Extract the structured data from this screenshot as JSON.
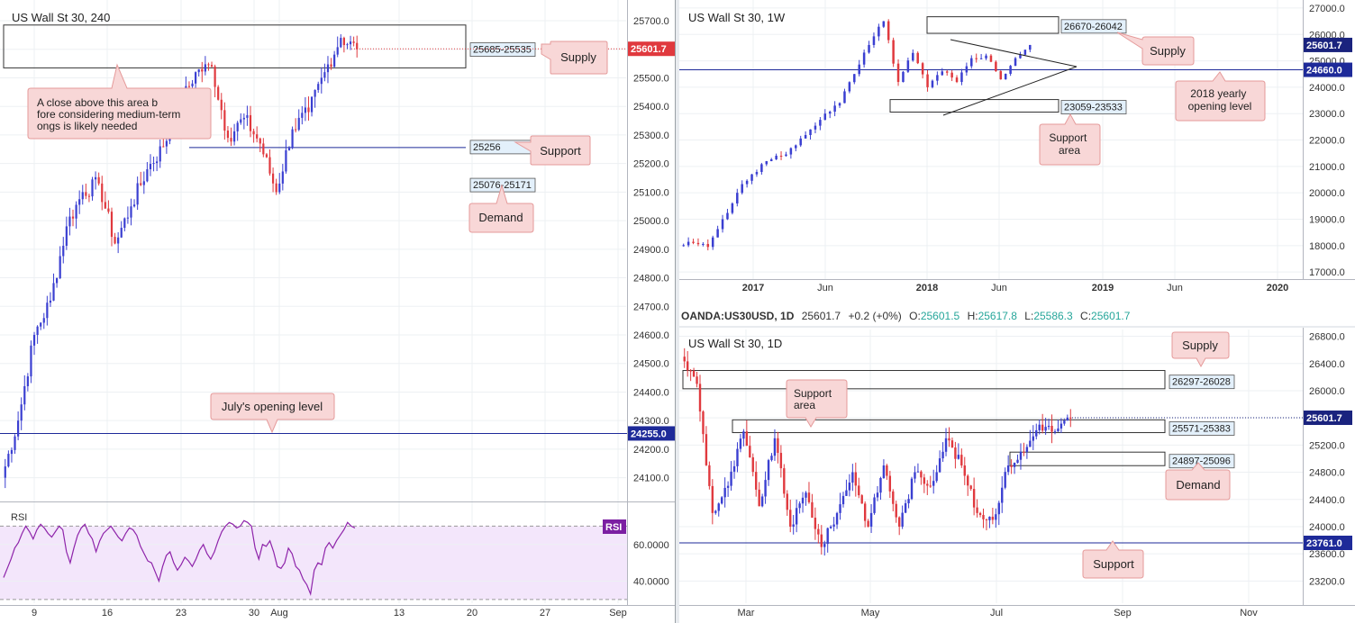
{
  "colors": {
    "up": "#3a3fd1",
    "down": "#e0393e",
    "grid": "#edf0f3",
    "level": "#1e2a99",
    "callout_bg": "#f8d7d7",
    "callout_border": "#e59a9a",
    "zone_label_bg": "#e3f0fb",
    "rsi_bg": "#f3e6fb",
    "rsi_line": "#8e24aa"
  },
  "info_bar": {
    "symbol": "OANDA:US30USD, 1D",
    "last": "25601.7",
    "change": "+0.2 (+0%)",
    "o_label": "O:",
    "o": "25601.5",
    "h_label": "H:",
    "h": "25617.8",
    "l_label": "L:",
    "l": "25586.3",
    "c_label": "C:",
    "c": "25601.7"
  },
  "chart_data": [
    {
      "id": "h4",
      "type": "candlestick",
      "title": "US Wall St 30, 240",
      "ylim": [
        24020,
        25760
      ],
      "x_ticks": [
        "9",
        "16",
        "23",
        "30",
        "Aug",
        "13",
        "20",
        "27",
        "Sep"
      ],
      "y_ticks": [
        24100,
        24200,
        24300,
        24400,
        24500,
        24600,
        24700,
        24800,
        24900,
        25000,
        25100,
        25200,
        25300,
        25400,
        25500,
        25600,
        25700
      ],
      "y_tick_labels": [
        "24100.0",
        "24200.0",
        "24300.0",
        "24400.0",
        "24500.0",
        "24600.0",
        "24700.0",
        "24800.0",
        "24900.0",
        "25000.0",
        "25100.0",
        "25200.0",
        "25300.0",
        "25400.0",
        "25500.0",
        "25600.0",
        "25700.0"
      ],
      "last_price": 25601.7,
      "last_price_label": "25601.7",
      "levels": [
        {
          "value": 24255,
          "label": "24255.0",
          "name": "July's opening level"
        },
        {
          "value": 25256,
          "label": "25256",
          "name": "Support"
        }
      ],
      "zones": [
        {
          "top": 25685,
          "bottom": 25535,
          "label": "25685-25535"
        }
      ],
      "zone_labels": [
        {
          "value": 25123,
          "label": "25076-25171"
        }
      ],
      "callouts": [
        "Supply",
        "A close above this area before considering medium-term longs is likely needed",
        "Support",
        "Demand",
        "July's opening level"
      ],
      "rsi": {
        "label": "RSI",
        "badge": "RSI",
        "ticks": [
          60,
          40
        ],
        "tick_labels": [
          "60.0000",
          "40.0000"
        ],
        "ylim": [
          28,
          80
        ],
        "bands": [
          70,
          30
        ],
        "values": [
          42,
          47,
          52,
          58,
          61,
          66,
          70,
          67,
          63,
          68,
          71,
          69,
          66,
          64,
          67,
          70,
          68,
          56,
          50,
          58,
          65,
          69,
          71,
          66,
          63,
          56,
          62,
          66,
          68,
          70,
          67,
          64,
          62,
          66,
          69,
          68,
          65,
          59,
          55,
          51,
          50,
          45,
          40,
          48,
          54,
          56,
          50,
          46,
          49,
          53,
          51,
          48,
          52,
          57,
          60,
          55,
          52,
          56,
          62,
          67,
          70,
          72,
          71,
          69,
          70,
          73,
          72,
          70,
          58,
          52,
          60,
          59,
          62,
          56,
          48,
          47,
          50,
          58,
          55,
          48,
          46,
          41,
          38,
          33,
          46,
          50,
          49,
          58,
          61,
          58,
          62,
          65,
          68,
          72,
          70,
          69
        ]
      }
    },
    {
      "id": "weekly",
      "type": "candlestick",
      "title": "US Wall St 30, 1W",
      "ylim": [
        16800,
        27100
      ],
      "x_ticks": [
        "2017",
        "Jun",
        "2018",
        "Jun",
        "2019",
        "Jun",
        "2020"
      ],
      "y_ticks": [
        17000,
        18000,
        19000,
        20000,
        21000,
        22000,
        23000,
        24000,
        25000,
        26000,
        27000
      ],
      "y_tick_labels": [
        "17000.0",
        "18000.0",
        "19000.0",
        "20000.0",
        "21000.0",
        "22000.0",
        "23000.0",
        "24000.0",
        "25000.0",
        "26000.0",
        "27000.0"
      ],
      "last_price": 25601.7,
      "last_price_label": "25601.7",
      "levels": [
        {
          "value": 24660,
          "label": "24660.0",
          "name": "2018 yearly opening level"
        }
      ],
      "zones": [
        {
          "top": 26670,
          "bottom": 26042,
          "label": "26670-26042"
        },
        {
          "top": 23533,
          "bottom": 23059,
          "label": "23059-23533"
        }
      ],
      "callouts": [
        "Supply",
        "2018 yearly opening level",
        "Support area"
      ]
    },
    {
      "id": "daily",
      "type": "candlestick",
      "title": "US Wall St 30, 1D",
      "ylim": [
        22900,
        26900
      ],
      "x_ticks": [
        "Mar",
        "May",
        "Jul",
        "Sep",
        "Nov"
      ],
      "y_ticks": [
        23200,
        23600,
        24000,
        24400,
        24800,
        25200,
        25600,
        26000,
        26400,
        26800
      ],
      "y_tick_labels": [
        "23200.0",
        "23600.0",
        "24000.0",
        "24400.0",
        "24800.0",
        "25200.0",
        "25600.0",
        "26000.0",
        "26400.0",
        "26800.0"
      ],
      "last_price": 25601.7,
      "last_price_label": "25601.7",
      "levels": [
        {
          "value": 23761,
          "label": "23761.0",
          "name": "Support"
        }
      ],
      "zones": [
        {
          "top": 26297,
          "bottom": 26028,
          "label": "26297-26028"
        },
        {
          "top": 25571,
          "bottom": 25383,
          "label": "25571-25383"
        },
        {
          "top": 25096,
          "bottom": 24897,
          "label": "24897-25096"
        }
      ],
      "callouts": [
        "Supply",
        "Support area",
        "Demand",
        "Support"
      ]
    }
  ]
}
